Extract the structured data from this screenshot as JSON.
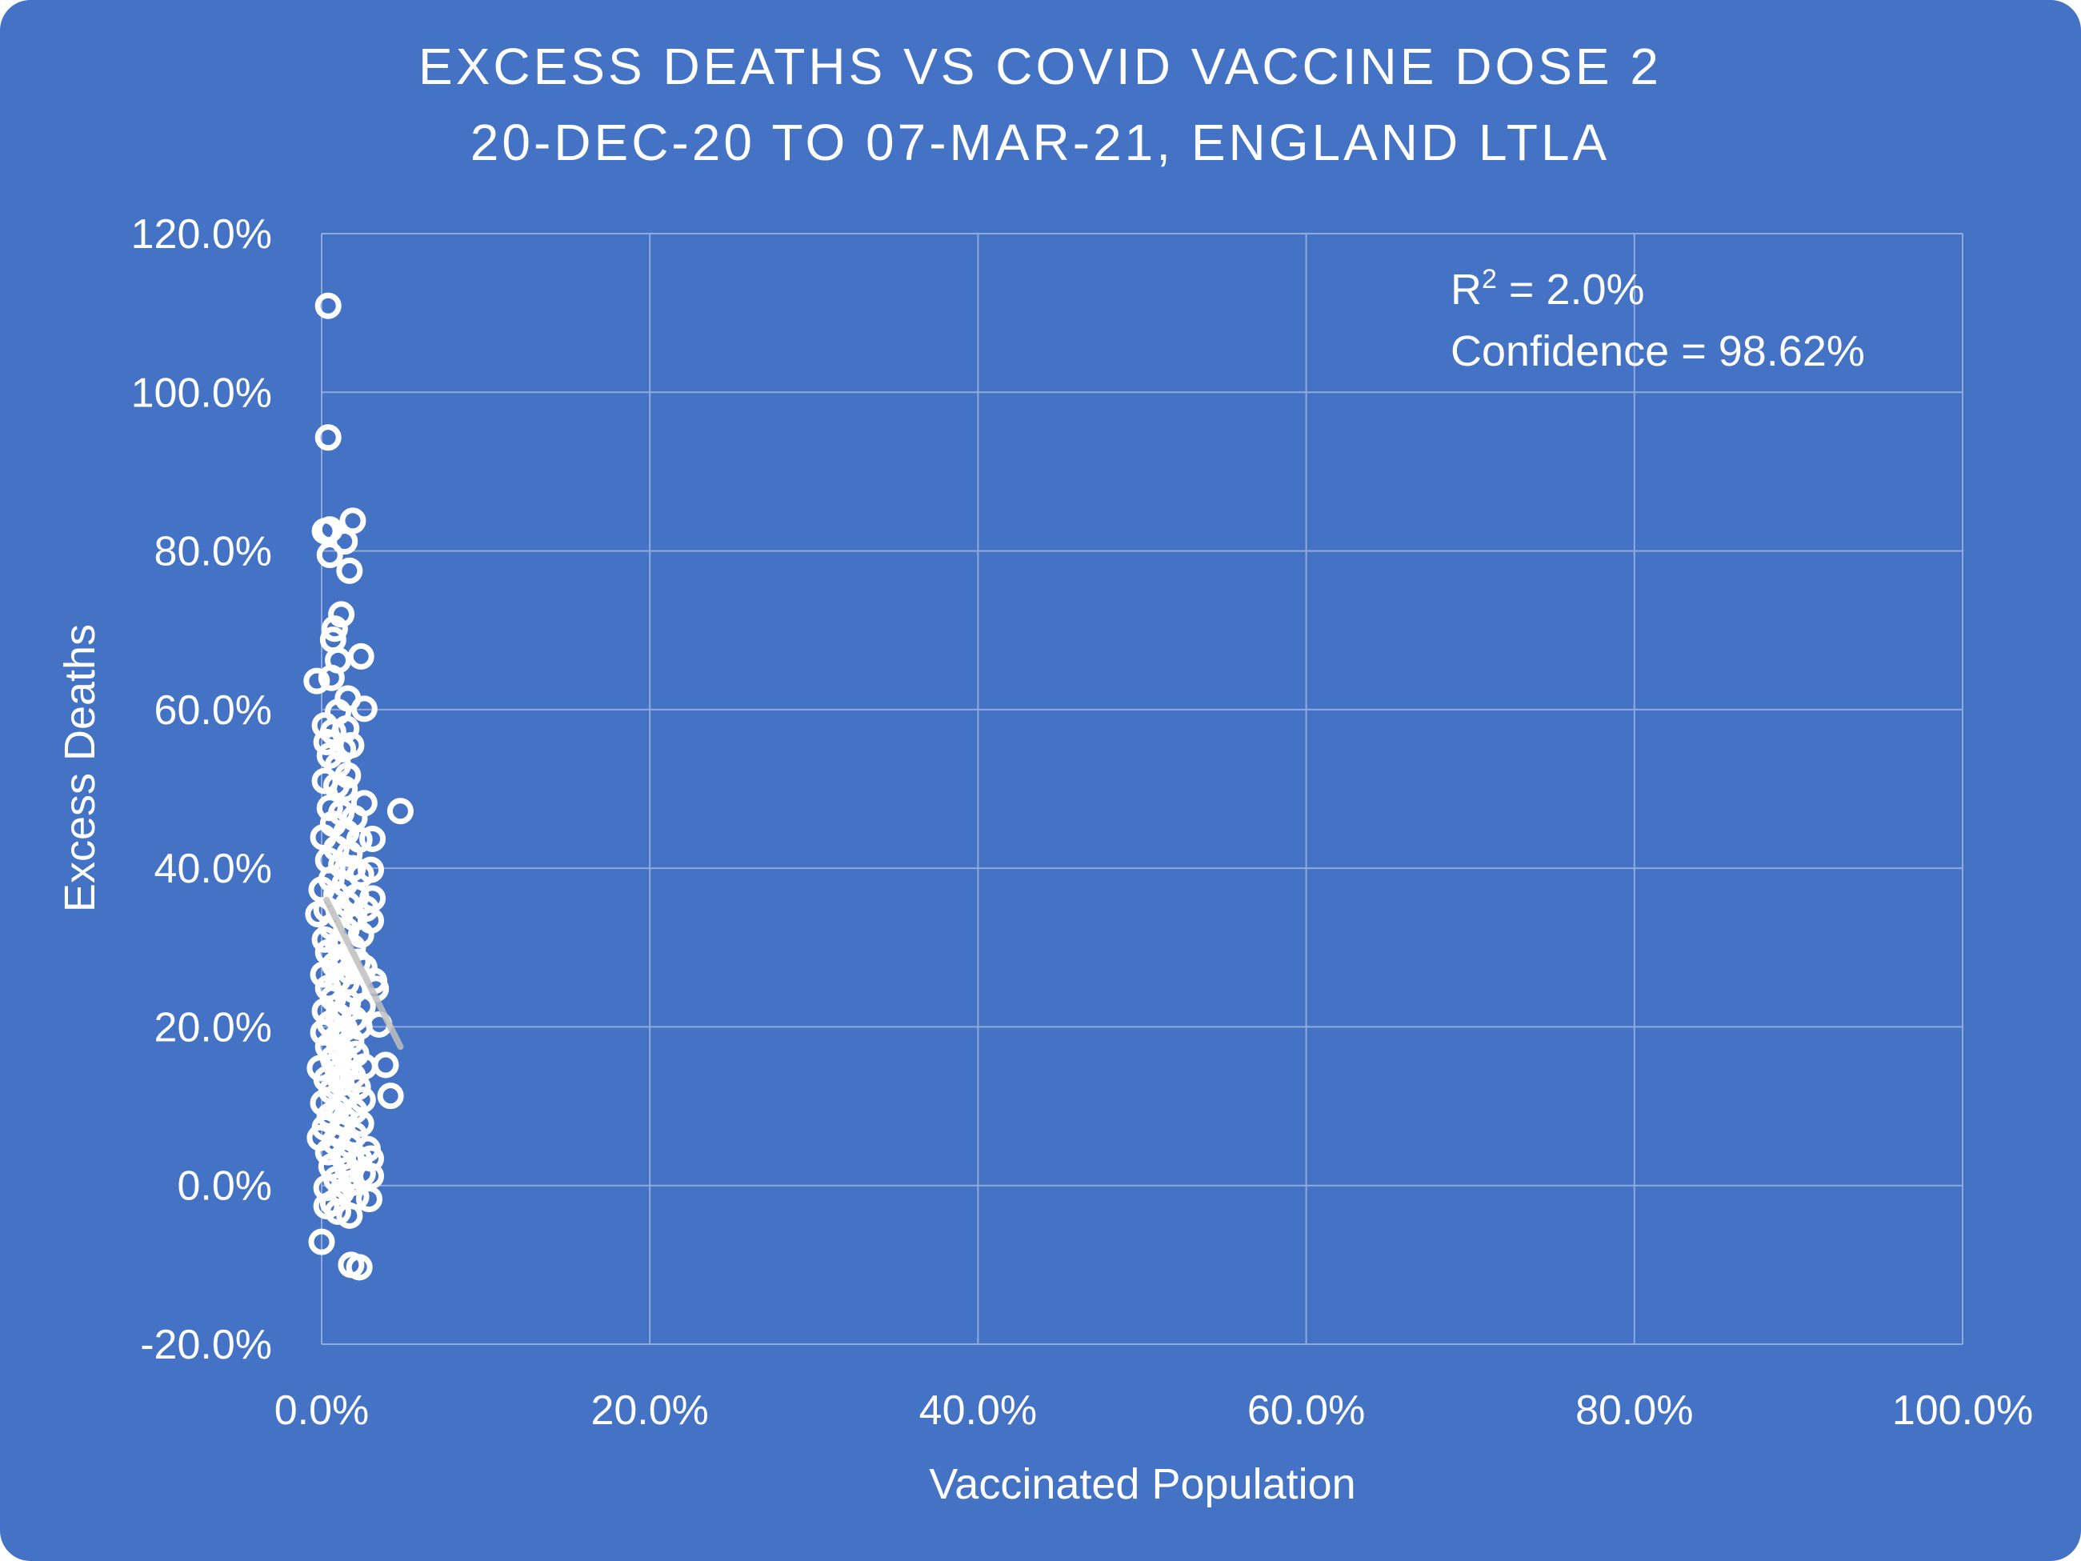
{
  "chart_data": {
    "type": "scatter",
    "title": "EXCESS DEATHS VS COVID VACCINE DOSE 2",
    "subtitle": "20-DEC-20 TO 07-MAR-21, ENGLAND LTLA",
    "xlabel": "Vaccinated Population",
    "ylabel": "Excess Deaths",
    "xlim": [
      0,
      100
    ],
    "ylim": [
      -20,
      120
    ],
    "x_ticks": [
      "0.0%",
      "20.0%",
      "40.0%",
      "60.0%",
      "80.0%",
      "100.0%"
    ],
    "y_ticks": [
      "120.0%",
      "100.0%",
      "80.0%",
      "60.0%",
      "40.0%",
      "20.0%",
      "0.0%",
      "-20.0%"
    ],
    "grid": true,
    "legend": "none",
    "annotation": {
      "r2_prefix": "R",
      "r2_superscript": "2",
      "r2_value": " = 2.0%",
      "confidence": "Confidence = 98.62%"
    },
    "trendline": {
      "x": [
        0.3,
        4.8
      ],
      "y": [
        36,
        17.5
      ]
    },
    "colors": {
      "background": "#4472C4",
      "grid": "#8FAADC",
      "marker": "#ffffff",
      "trendline": "#BFBFBF"
    },
    "points": [
      [
        0.4,
        110.9
      ],
      [
        0.4,
        94.3
      ],
      [
        0.2,
        82.5
      ],
      [
        0.5,
        82.7
      ],
      [
        1.4,
        81.2
      ],
      [
        1.9,
        83.8
      ],
      [
        0.5,
        79.5
      ],
      [
        1.7,
        77.5
      ],
      [
        0.8,
        70.2
      ],
      [
        1.2,
        72.0
      ],
      [
        0.7,
        68.8
      ],
      [
        1.0,
        66.2
      ],
      [
        2.4,
        66.7
      ],
      [
        -0.3,
        63.6
      ],
      [
        0.6,
        64.0
      ],
      [
        1.6,
        61.4
      ],
      [
        2.6,
        60.1
      ],
      [
        1.0,
        59.7
      ],
      [
        0.2,
        58.0
      ],
      [
        0.7,
        57.2
      ],
      [
        1.5,
        57.6
      ],
      [
        0.3,
        55.9
      ],
      [
        1.3,
        55.0
      ],
      [
        1.8,
        55.5
      ],
      [
        0.5,
        54.2
      ],
      [
        1.0,
        53.0
      ],
      [
        1.6,
        51.7
      ],
      [
        0.2,
        51.0
      ],
      [
        0.9,
        50.4
      ],
      [
        1.4,
        50.0
      ],
      [
        2.6,
        48.2
      ],
      [
        0.5,
        47.6
      ],
      [
        1.2,
        47.0
      ],
      [
        2.0,
        46.3
      ],
      [
        4.8,
        47.2
      ],
      [
        0.7,
        45.6
      ],
      [
        1.5,
        44.5
      ],
      [
        2.3,
        43.6
      ],
      [
        3.1,
        43.7
      ],
      [
        0.1,
        43.9
      ],
      [
        0.9,
        42.5
      ],
      [
        1.7,
        41.8
      ],
      [
        0.4,
        41.0
      ],
      [
        1.2,
        40.4
      ],
      [
        1.9,
        40.0
      ],
      [
        3.0,
        39.8
      ],
      [
        2.4,
        39.2
      ],
      [
        0.6,
        38.6
      ],
      [
        1.4,
        38.0
      ],
      [
        0.0,
        37.3
      ],
      [
        0.9,
        36.7
      ],
      [
        2.1,
        36.4
      ],
      [
        3.1,
        36.2
      ],
      [
        1.6,
        35.4
      ],
      [
        0.3,
        34.8
      ],
      [
        2.7,
        34.9
      ],
      [
        -0.2,
        34.2
      ],
      [
        1.1,
        34.0
      ],
      [
        2.0,
        33.7
      ],
      [
        3.0,
        33.4
      ],
      [
        0.6,
        32.6
      ],
      [
        1.5,
        32.2
      ],
      [
        2.4,
        31.6
      ],
      [
        0.2,
        31.0
      ],
      [
        1.0,
        30.4
      ],
      [
        1.9,
        30.0
      ],
      [
        0.4,
        29.4
      ],
      [
        1.3,
        28.8
      ],
      [
        2.2,
        28.2
      ],
      [
        0.8,
        27.8
      ],
      [
        1.7,
        27.0
      ],
      [
        2.6,
        27.5
      ],
      [
        0.1,
        26.6
      ],
      [
        1.0,
        26.0
      ],
      [
        3.2,
        25.8
      ],
      [
        1.5,
        25.5
      ],
      [
        0.4,
        24.9
      ],
      [
        2.0,
        24.6
      ],
      [
        3.3,
        24.8
      ],
      [
        0.7,
        23.6
      ],
      [
        1.6,
        23.1
      ],
      [
        2.5,
        22.6
      ],
      [
        0.2,
        22.0
      ],
      [
        1.0,
        21.4
      ],
      [
        2.0,
        21.0
      ],
      [
        0.5,
        20.4
      ],
      [
        1.4,
        19.8
      ],
      [
        2.3,
        20.0
      ],
      [
        3.5,
        20.3
      ],
      [
        0.1,
        19.3
      ],
      [
        0.9,
        18.6
      ],
      [
        1.8,
        18.2
      ],
      [
        0.4,
        17.5
      ],
      [
        1.2,
        17.0
      ],
      [
        2.1,
        16.6
      ],
      [
        0.7,
        16.0
      ],
      [
        1.6,
        15.4
      ],
      [
        2.6,
        15.0
      ],
      [
        -0.1,
        14.8
      ],
      [
        3.9,
        15.2
      ],
      [
        1.0,
        14.3
      ],
      [
        1.9,
        13.8
      ],
      [
        0.3,
        13.4
      ],
      [
        1.2,
        12.9
      ],
      [
        2.2,
        12.4
      ],
      [
        0.6,
        11.9
      ],
      [
        1.5,
        11.3
      ],
      [
        4.2,
        11.3
      ],
      [
        2.5,
        10.8
      ],
      [
        0.1,
        10.4
      ],
      [
        1.0,
        9.8
      ],
      [
        2.0,
        9.4
      ],
      [
        0.5,
        8.8
      ],
      [
        1.4,
        8.3
      ],
      [
        2.4,
        7.8
      ],
      [
        0.2,
        7.3
      ],
      [
        1.1,
        6.8
      ],
      [
        2.0,
        6.4
      ],
      [
        -0.1,
        6.0
      ],
      [
        0.8,
        5.5
      ],
      [
        1.7,
        5.1
      ],
      [
        2.8,
        4.6
      ],
      [
        0.4,
        4.2
      ],
      [
        1.3,
        3.6
      ],
      [
        2.3,
        3.3
      ],
      [
        3.0,
        3.4
      ],
      [
        0.6,
        2.4
      ],
      [
        1.6,
        2.0
      ],
      [
        2.5,
        1.5
      ],
      [
        3.0,
        1.2
      ],
      [
        0.9,
        0.8
      ],
      [
        1.8,
        0.3
      ],
      [
        0.3,
        -0.3
      ],
      [
        1.2,
        -0.8
      ],
      [
        2.1,
        -1.4
      ],
      [
        2.9,
        -1.7
      ],
      [
        0.7,
        -2.2
      ],
      [
        0.3,
        -2.6
      ],
      [
        1.0,
        -3.3
      ],
      [
        1.7,
        -3.8
      ],
      [
        0.0,
        -7.1
      ],
      [
        1.8,
        -10.0
      ],
      [
        2.3,
        -10.3
      ]
    ]
  }
}
